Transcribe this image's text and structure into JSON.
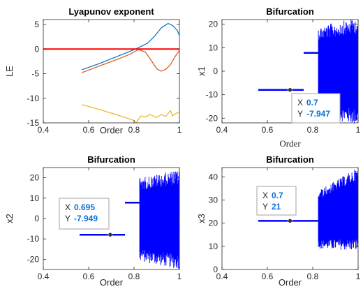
{
  "colors": {
    "blue": "#0072BD",
    "orange": "#D95319",
    "yellow": "#EDB120",
    "red": "#FF0000",
    "bif": "#0000FF",
    "axis": "#262626",
    "datatip_value": "#0A6FD6"
  },
  "chart_data": [
    {
      "id": "lyapunov",
      "type": "line",
      "title": "Lyapunov exponent",
      "xlabel": "Order",
      "ylabel": "LE",
      "xlim": [
        0.4,
        1
      ],
      "ylim": [
        -15,
        6
      ],
      "xticks": [
        0.4,
        0.6,
        0.8,
        1
      ],
      "xtick_labels": [
        "0.4",
        "0.6",
        "0.8",
        "1"
      ],
      "yticks": [
        -15,
        -10,
        -5,
        0,
        5
      ],
      "ytick_labels": [
        "-15",
        "-10",
        "-5",
        "0",
        "5"
      ],
      "grid": false,
      "series": [
        {
          "color": "#0072BD",
          "x": [
            0.57,
            0.65,
            0.72,
            0.78,
            0.82,
            0.86,
            0.89,
            0.92,
            0.95,
            0.97,
            0.99,
            1.0
          ],
          "y": [
            -4.2,
            -2.9,
            -1.6,
            -0.5,
            0.3,
            1.2,
            2.6,
            4.3,
            5.2,
            4.8,
            3.8,
            2.8
          ]
        },
        {
          "color": "#D95319",
          "x": [
            0.57,
            0.65,
            0.72,
            0.78,
            0.82,
            0.85,
            0.88,
            0.9,
            0.92,
            0.94,
            0.96,
            0.98,
            1.0
          ],
          "y": [
            -4.8,
            -3.4,
            -2.2,
            -1.1,
            -0.1,
            -0.6,
            -2.6,
            -4.0,
            -4.5,
            -4.1,
            -3.2,
            -1.6,
            -0.3
          ]
        },
        {
          "color": "#EDB120",
          "x": [
            0.57,
            0.62,
            0.67,
            0.72,
            0.76,
            0.8,
            0.81,
            0.83,
            0.85,
            0.87,
            0.9,
            0.92,
            0.94,
            0.96,
            0.97,
            0.98,
            1.0
          ],
          "y": [
            -11.3,
            -11.9,
            -12.6,
            -13.3,
            -13.9,
            -14.5,
            -15.0,
            -13.6,
            -13.8,
            -13.3,
            -13.9,
            -13.3,
            -13.7,
            -12.5,
            -13.6,
            -13.2,
            -12.8
          ]
        },
        {
          "color": "#FF0000",
          "x": [
            0.4,
            1.0
          ],
          "y": [
            0,
            0
          ]
        }
      ]
    },
    {
      "id": "bif_x1",
      "type": "scatter",
      "title": "Bifurcation",
      "xlabel": "Order",
      "ylabel": "x1",
      "xlim": [
        0.4,
        1
      ],
      "ylim": [
        -22,
        22
      ],
      "xticks": [
        0.4,
        0.6,
        0.8,
        1
      ],
      "xtick_labels": [
        "0.4",
        "0.6",
        "0.8",
        "1"
      ],
      "yticks": [
        -20,
        -10,
        0,
        10,
        20
      ],
      "ytick_labels": [
        "-20",
        "-10",
        "0",
        "10",
        "20"
      ],
      "fixed_segments": [
        {
          "x": [
            0.56,
            0.76
          ],
          "y": -7.947
        },
        {
          "x": [
            0.76,
            0.825
          ],
          "y": 7.8
        }
      ],
      "chaotic_band": {
        "x": [
          0.825,
          1.0
        ],
        "ymin": [
          -19,
          -23
        ],
        "ymax": [
          19,
          23
        ]
      },
      "datatip": {
        "X_label": "X",
        "Y_label": "Y",
        "X": "0.7",
        "Y": "-7.947",
        "x": 0.7,
        "y": -7.947
      }
    },
    {
      "id": "bif_x2",
      "type": "scatter",
      "title": "Bifurcation",
      "xlabel": "Order",
      "ylabel": "x2",
      "xlim": [
        0.4,
        1
      ],
      "ylim": [
        -25,
        25
      ],
      "xticks": [
        0.4,
        0.6,
        0.8,
        1
      ],
      "xtick_labels": [
        "0.4",
        "0.6",
        "0.8",
        "1"
      ],
      "yticks": [
        -20,
        -10,
        0,
        10,
        20
      ],
      "ytick_labels": [
        "-20",
        "-10",
        "0",
        "10",
        "20"
      ],
      "fixed_segments": [
        {
          "x": [
            0.56,
            0.76
          ],
          "y": -7.949
        },
        {
          "x": [
            0.76,
            0.825
          ],
          "y": 7.8
        }
      ],
      "chaotic_band": {
        "x": [
          0.825,
          1.0
        ],
        "ymin": [
          -21,
          -25
        ],
        "ymax": [
          20,
          24
        ]
      },
      "datatip": {
        "X_label": "X",
        "Y_label": "Y",
        "X": "0.695",
        "Y": "-7.949",
        "x": 0.695,
        "y": -7.949
      }
    },
    {
      "id": "bif_x3",
      "type": "scatter",
      "title": "Bifurcation",
      "xlabel": "Order",
      "ylabel": "x3",
      "xlim": [
        0.4,
        1
      ],
      "ylim": [
        0,
        44
      ],
      "xticks": [
        0.4,
        0.6,
        0.8,
        1
      ],
      "xtick_labels": [
        "0.4",
        "0.6",
        "0.8",
        "1"
      ],
      "yticks": [
        0,
        10,
        20,
        30,
        40
      ],
      "ytick_labels": [
        "0",
        "10",
        "20",
        "30",
        "40"
      ],
      "fixed_segments": [
        {
          "x": [
            0.56,
            0.825
          ],
          "y": 21
        }
      ],
      "chaotic_band": {
        "x": [
          0.825,
          1.0
        ],
        "ymin": [
          9,
          8
        ],
        "ymax": [
          34,
          44
        ]
      },
      "datatip": {
        "X_label": "X",
        "Y_label": "Y",
        "X": "0.7",
        "Y": "21",
        "x": 0.7,
        "y": 21
      }
    }
  ]
}
